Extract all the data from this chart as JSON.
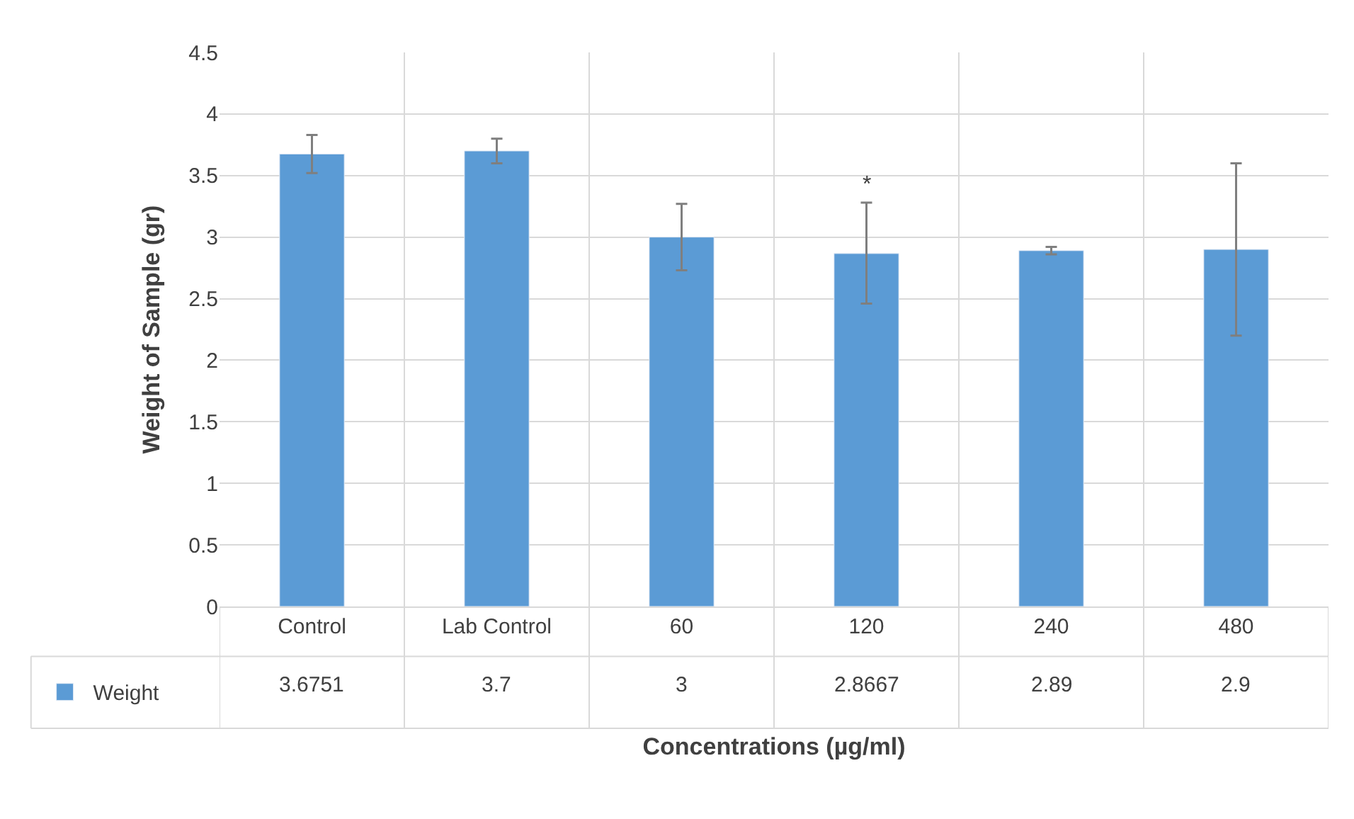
{
  "chart_data": {
    "type": "bar",
    "xlabel": "Concentrations (µg/ml)",
    "ylabel": "Weight of Sample (gr)",
    "categories": [
      "Control",
      "Lab Control",
      "60",
      "120",
      "240",
      "480"
    ],
    "series": [
      {
        "name": "Weight",
        "color": "#5b9bd5",
        "values": [
          3.6751,
          3.7,
          3,
          2.8667,
          2.89,
          2.9
        ],
        "errors": [
          [
            3.52,
            3.83
          ],
          [
            3.6,
            3.8
          ],
          [
            2.73,
            3.27
          ],
          [
            2.46,
            3.28
          ],
          [
            2.86,
            2.92
          ],
          [
            2.2,
            3.6
          ]
        ]
      }
    ],
    "ylim": [
      0,
      4.5
    ],
    "yticks": [
      0,
      0.5,
      1,
      1.5,
      2,
      2.5,
      3,
      3.5,
      4,
      4.5
    ],
    "annotations": [
      {
        "text": "*",
        "x": "120",
        "y": 3.28
      }
    ],
    "data_labels": true,
    "grid": "y",
    "legend": "bottom left"
  }
}
